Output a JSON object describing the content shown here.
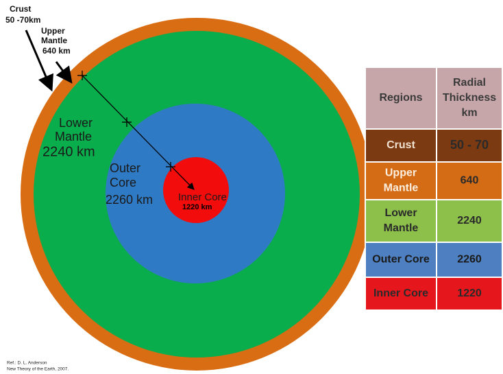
{
  "diagram": {
    "crust": [
      "Crust",
      "50 -70km"
    ],
    "upper_mantle": [
      "Upper",
      "Mantle",
      "640 km"
    ],
    "lower_mantle": [
      "Lower",
      "Mantle",
      "2240 km"
    ],
    "outer_core": [
      "Outer",
      "Core",
      "2260 km"
    ],
    "inner_core": [
      "Inner Core",
      "1220 km"
    ]
  },
  "table": {
    "header": [
      [
        "Regions"
      ],
      [
        "Radial",
        "Thickness",
        "km"
      ]
    ],
    "rows": [
      [
        [
          "Crust"
        ],
        [
          "50 - 70"
        ]
      ],
      [
        [
          "Upper",
          "Mantle"
        ],
        [
          "640"
        ]
      ],
      [
        [
          "Lower",
          "Mantle"
        ],
        [
          "2240"
        ]
      ],
      [
        [
          "Outer Core"
        ],
        [
          "2260"
        ]
      ],
      [
        [
          "Inner Core"
        ],
        [
          "1220"
        ]
      ]
    ]
  },
  "reference": [
    "Ref.: D. L. Anderson",
    "New Theory of the Earth, 2007."
  ]
}
